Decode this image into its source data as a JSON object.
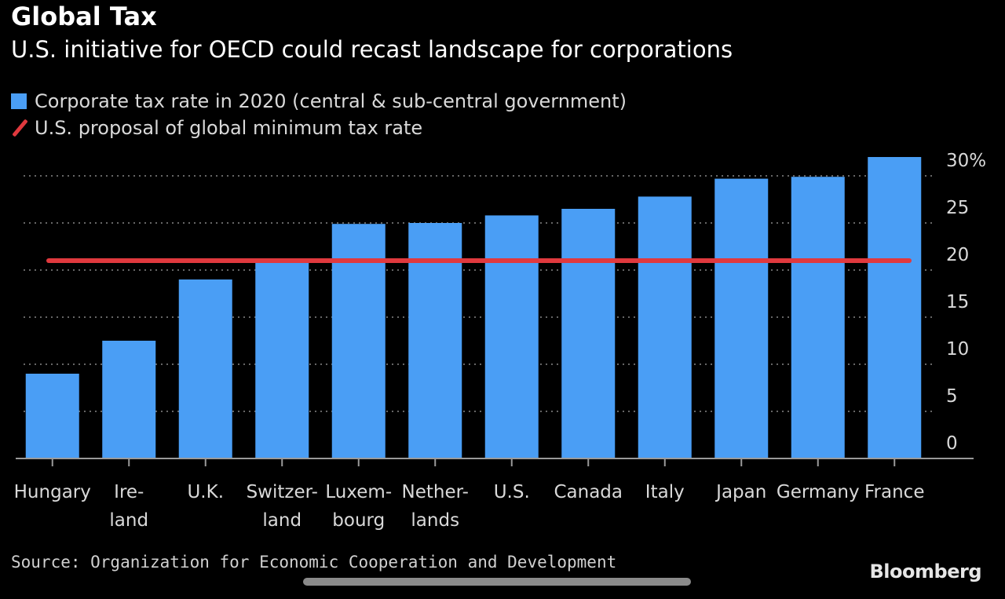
{
  "title": "Global Tax",
  "subtitle": "U.S. initiative for OECD could recast landscape for corporations",
  "legend": {
    "bar_label": "Corporate tax rate in 2020 (central & sub-central government)",
    "line_label": "U.S. proposal of global minimum tax rate"
  },
  "source": "Source: Organization for Economic Cooperation and Development",
  "brand": "Bloomberg",
  "colors": {
    "bar": "#4a9ef5",
    "line": "#e0393e",
    "grid": "#666666",
    "text": "#d9d9d9"
  },
  "chart_data": {
    "type": "bar",
    "categories": [
      "Hungary",
      "Ireland",
      "U.K.",
      "Switzerland",
      "Luxembourg",
      "Netherlands",
      "U.S.",
      "Canada",
      "Italy",
      "Japan",
      "Germany",
      "France"
    ],
    "category_labels": [
      [
        "Hungary"
      ],
      [
        "Ire-",
        "land"
      ],
      [
        "U.K."
      ],
      [
        "Switzer-",
        "land"
      ],
      [
        "Luxem-",
        "bourg"
      ],
      [
        "Nether-",
        "lands"
      ],
      [
        "U.S."
      ],
      [
        "Canada"
      ],
      [
        "Italy"
      ],
      [
        "Japan"
      ],
      [
        "Germany"
      ],
      [
        "France"
      ]
    ],
    "series": [
      {
        "name": "Corporate tax rate in 2020 (central & sub-central government)",
        "values": [
          9,
          12.5,
          19,
          21.1,
          24.9,
          25,
          25.8,
          26.5,
          27.8,
          29.7,
          29.9,
          32.0
        ]
      }
    ],
    "reference_line": {
      "name": "U.S. proposal of global minimum tax rate",
      "value": 21
    },
    "yticks": [
      0,
      5,
      10,
      15,
      20,
      25,
      30
    ],
    "ytick_labels": [
      "0",
      "5",
      "10",
      "15",
      "20",
      "25",
      "30%"
    ],
    "ylim": [
      0,
      32
    ],
    "y_axis_side": "right",
    "grid": true,
    "legend_position": "top-left"
  }
}
